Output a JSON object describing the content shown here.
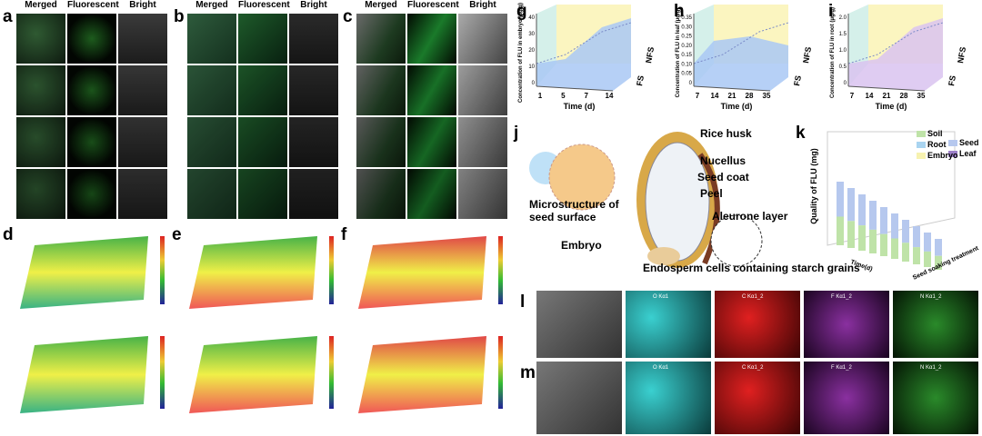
{
  "figure": {
    "micro_panels": [
      {
        "label": "a",
        "columns": [
          "Merged",
          "Fluorescent",
          "Bright"
        ]
      },
      {
        "label": "b",
        "columns": [
          "Merged",
          "Fluorescent",
          "Bright"
        ]
      },
      {
        "label": "c",
        "columns": [
          "Merged",
          "Fluorescent",
          "Bright"
        ]
      }
    ],
    "surface_panels": [
      {
        "label": "d"
      },
      {
        "label": "e"
      },
      {
        "label": "f"
      }
    ],
    "line_panels": [
      {
        "label": "g",
        "y_label": "Concentration of FLU in embryo (μg/g)",
        "y_ticks": [
          "0",
          "10",
          "20",
          "30",
          "40"
        ],
        "x_ticks": [
          "1",
          "5",
          "7",
          "14"
        ],
        "x_label": "Time (d)",
        "series": [
          "FS",
          "NFS"
        ]
      },
      {
        "label": "h",
        "y_label": "Concentration of FLU in leaf (μg/g)",
        "y_ticks": [
          "0",
          "0.05",
          "0.10",
          "0.15",
          "0.20",
          "0.25",
          "0.30",
          "0.35"
        ],
        "x_ticks": [
          "7",
          "14",
          "21",
          "28",
          "35"
        ],
        "x_label": "Time (d)",
        "series": [
          "FS",
          "NFS"
        ]
      },
      {
        "label": "i",
        "y_label": "Concentration of FLU in root (μg/g)",
        "y_ticks": [
          "0",
          "0.5",
          "1.0",
          "1.5",
          "2.0"
        ],
        "x_ticks": [
          "7",
          "14",
          "21",
          "28",
          "35"
        ],
        "x_label": "Time (d)",
        "series": [
          "FS",
          "NFS"
        ]
      }
    ],
    "diagram": {
      "label": "j",
      "parts": [
        "Rice husk",
        "Nucellus",
        "Seed coat",
        "Peel",
        "Aleurone layer",
        "Microstructure of seed surface",
        "Embryo",
        "Endosperm cells containing starch grains"
      ]
    },
    "bar3d": {
      "label": "k",
      "y_label": "Quality of FLU (mg)",
      "legend": [
        "Soil",
        "Seed",
        "Root",
        "Leaf",
        "Embryo"
      ],
      "x_label": "Time(d)",
      "z_label": "Seed soaking treatment"
    },
    "eds": [
      {
        "label": "l",
        "maps": [
          "O Kα1",
          "C Kα1_2",
          "F Kα1_2",
          "N Kα1_2"
        ]
      },
      {
        "label": "m",
        "maps": [
          "O Kα1",
          "C Kα1_2",
          "F Kα1_2",
          "N Kα1_2"
        ]
      }
    ]
  }
}
